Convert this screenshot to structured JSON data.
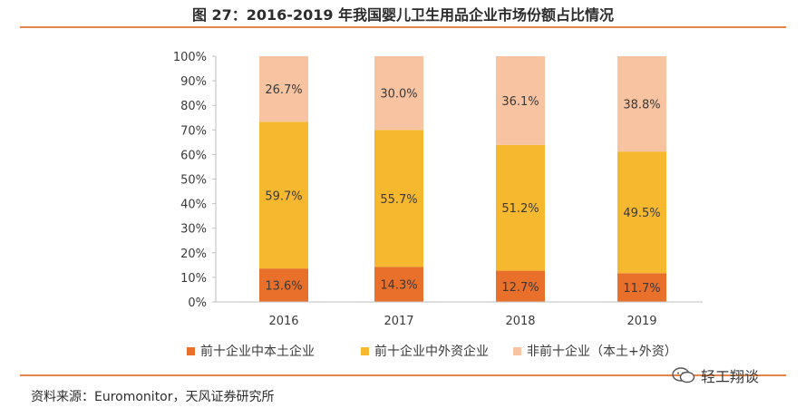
{
  "figure": {
    "title": "图 27：2016-2019 年我国婴儿卫生用品企业市场份额占比情况",
    "source": "资料来源：Euromonitor，天风证券研究所",
    "watermark": "轻工翔谈"
  },
  "chart_data": {
    "type": "bar",
    "stacked": true,
    "categories": [
      "2016",
      "2017",
      "2018",
      "2019"
    ],
    "series": [
      {
        "name": "前十企业中本土企业",
        "values": [
          13.6,
          14.3,
          12.7,
          11.7
        ],
        "labels": [
          "13.6%",
          "14.3%",
          "12.7%",
          "11.7%"
        ],
        "color": "#e8702a"
      },
      {
        "name": "前十企业中外资企业",
        "values": [
          59.7,
          55.7,
          51.2,
          49.5
        ],
        "labels": [
          "59.7%",
          "55.7%",
          "51.2%",
          "49.5%"
        ],
        "color": "#f5b82e"
      },
      {
        "name": "非前十企业（本土+外资）",
        "values": [
          26.7,
          30.0,
          36.1,
          38.8
        ],
        "labels": [
          "26.7%",
          "30.0%",
          "36.1%",
          "38.8%"
        ],
        "color": "#f7c3a1"
      }
    ],
    "yticks": [
      "0%",
      "10%",
      "20%",
      "30%",
      "40%",
      "50%",
      "60%",
      "70%",
      "80%",
      "90%",
      "100%"
    ],
    "ylim": [
      0,
      100
    ],
    "grid": false,
    "legend_position": "bottom"
  }
}
